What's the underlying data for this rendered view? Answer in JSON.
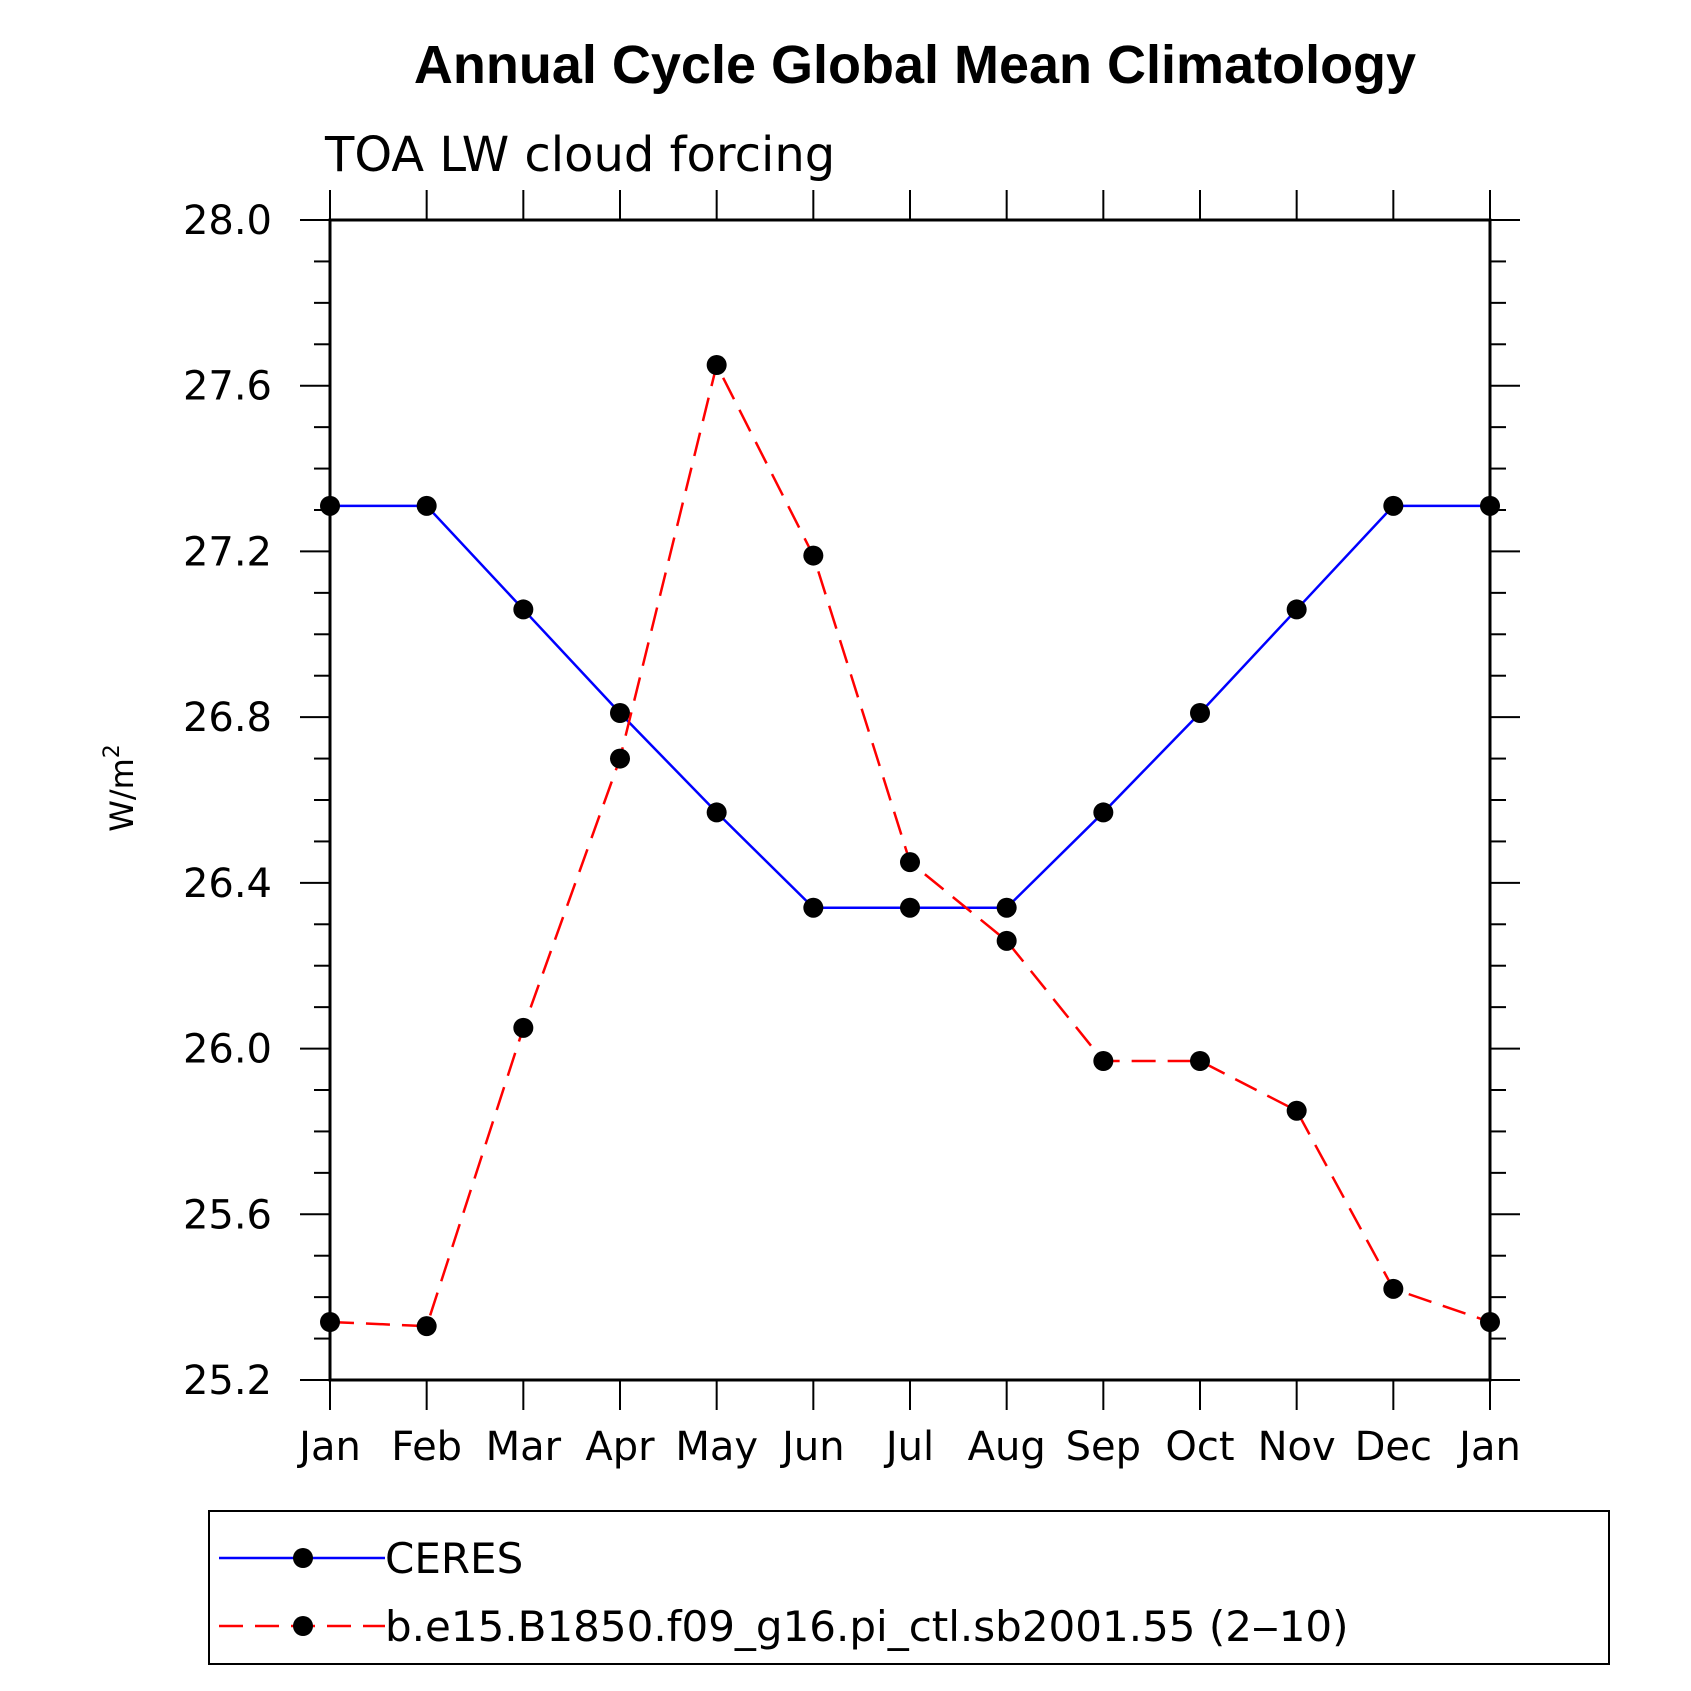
{
  "chart_data": {
    "type": "line",
    "title": "Annual Cycle Global Mean Climatology",
    "subtitle": "TOA LW cloud forcing",
    "ylabel": "W/m",
    "ylabel_superscript": "2",
    "xlabel": "",
    "ylim": [
      25.2,
      28.0
    ],
    "y_major_ticks": [
      "25.2",
      "25.6",
      "26.0",
      "26.4",
      "26.8",
      "27.2",
      "27.6",
      "28.0"
    ],
    "y_minor_step": 0.1,
    "categories": [
      "Jan",
      "Feb",
      "Mar",
      "Apr",
      "May",
      "Jun",
      "Jul",
      "Aug",
      "Sep",
      "Oct",
      "Nov",
      "Dec",
      "Jan"
    ],
    "grid": false,
    "legend_position": "bottom",
    "series": [
      {
        "name": "CERES",
        "color": "#0000ff",
        "dash": "solid",
        "marker": "filled-circle",
        "values": [
          27.31,
          27.31,
          27.06,
          26.81,
          26.57,
          26.34,
          26.34,
          26.34,
          26.57,
          26.81,
          27.06,
          27.31,
          27.31
        ]
      },
      {
        "name": "b.e15.B1850.f09_g16.pi_ctl.sb2001.55 (2‒10)",
        "color": "#ff0000",
        "dash": "dashed",
        "marker": "filled-circle",
        "values": [
          25.34,
          25.33,
          26.05,
          26.7,
          27.65,
          27.19,
          26.45,
          26.26,
          25.97,
          25.97,
          25.85,
          25.42,
          25.34
        ]
      }
    ]
  }
}
